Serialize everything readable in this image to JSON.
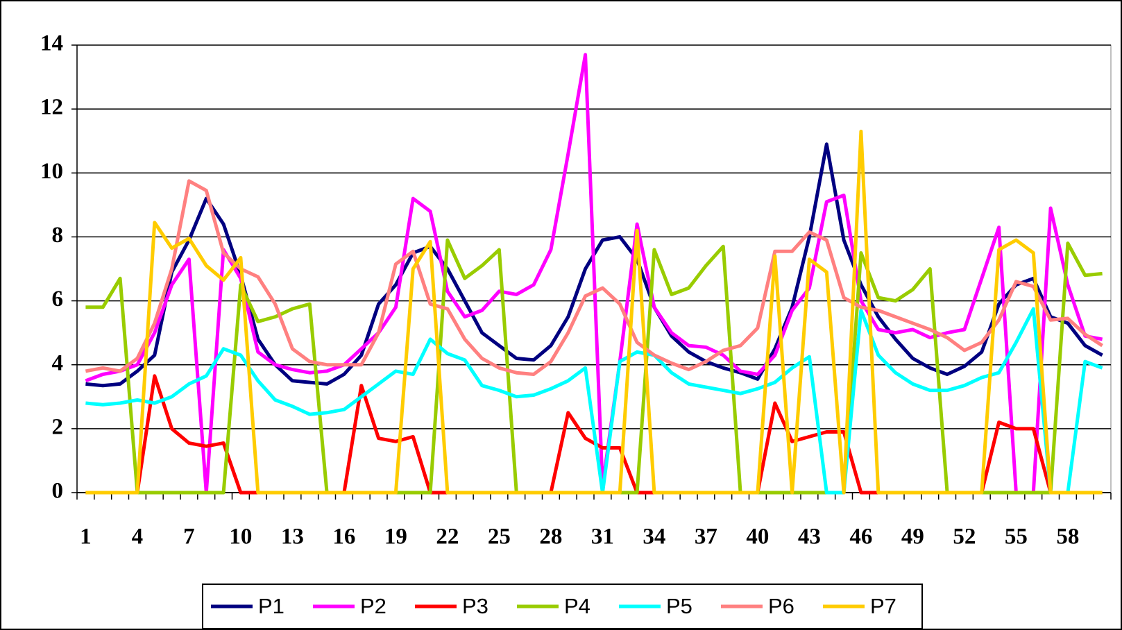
{
  "chart_data": {
    "type": "line",
    "categories": [
      "1",
      null,
      null,
      "4",
      null,
      null,
      "7",
      null,
      null,
      "10",
      null,
      null,
      "13",
      null,
      null,
      "16",
      null,
      null,
      "19",
      null,
      null,
      "22",
      null,
      null,
      "25",
      null,
      null,
      "28",
      null,
      null,
      "31",
      null,
      null,
      "34",
      null,
      null,
      "37",
      null,
      null,
      "40",
      null,
      null,
      "43",
      null,
      null,
      "46",
      null,
      null,
      "49",
      null,
      null,
      "52",
      null,
      null,
      "55",
      null,
      null,
      "58",
      null,
      null
    ],
    "ylim": [
      0,
      14
    ],
    "yticks": [
      0,
      2,
      4,
      6,
      8,
      10,
      12,
      14
    ],
    "grid": true,
    "legend": "bottom",
    "series": [
      {
        "name": "P1",
        "color": "#000080",
        "values": [
          3.4,
          3.35,
          3.4,
          3.8,
          4.3,
          6.9,
          7.9,
          9.2,
          8.4,
          6.8,
          4.8,
          4.0,
          3.5,
          3.45,
          3.4,
          3.7,
          4.3,
          5.9,
          6.5,
          7.5,
          7.7,
          7.0,
          6.0,
          5.0,
          4.6,
          4.2,
          4.15,
          4.6,
          5.5,
          7.0,
          7.9,
          8.0,
          7.3,
          5.8,
          4.9,
          4.4,
          4.1,
          3.9,
          3.75,
          3.55,
          4.5,
          5.8,
          8.0,
          10.9,
          7.9,
          6.5,
          5.5,
          4.8,
          4.2,
          3.9,
          3.7,
          3.95,
          4.4,
          5.9,
          6.5,
          6.7,
          5.5,
          5.3,
          4.6,
          4.3
        ]
      },
      {
        "name": "P2",
        "color": "#ff00ff",
        "values": [
          3.5,
          3.7,
          3.8,
          4.0,
          5.0,
          6.5,
          7.3,
          0,
          7.6,
          6.7,
          4.4,
          4.0,
          3.85,
          3.75,
          3.8,
          4.0,
          4.5,
          5.0,
          5.8,
          9.2,
          8.8,
          6.3,
          5.5,
          5.7,
          6.3,
          6.2,
          6.5,
          7.6,
          10.6,
          13.7,
          0.2,
          4.1,
          8.4,
          5.8,
          5.0,
          4.6,
          4.55,
          4.3,
          3.8,
          3.7,
          4.3,
          5.7,
          6.4,
          9.1,
          9.3,
          6.0,
          5.1,
          5.0,
          5.1,
          4.85,
          5.0,
          5.1,
          6.7,
          8.3,
          0,
          0,
          8.9,
          6.5,
          4.9,
          4.8
        ]
      },
      {
        "name": "P3",
        "color": "#ff0000",
        "values": [
          0,
          0,
          0,
          0,
          3.65,
          2.0,
          1.55,
          1.45,
          1.55,
          0,
          0,
          0,
          0,
          0,
          0,
          0,
          3.35,
          1.7,
          1.6,
          1.75,
          0,
          0,
          0,
          0,
          0,
          0,
          0,
          0,
          2.5,
          1.7,
          1.4,
          1.4,
          0,
          0,
          0,
          0,
          0,
          0,
          0,
          0,
          2.8,
          1.6,
          1.75,
          1.9,
          1.9,
          0,
          0,
          0,
          0,
          0,
          0,
          0,
          0,
          2.2,
          2.0,
          2.0,
          0,
          0,
          0,
          0
        ]
      },
      {
        "name": "P4",
        "color": "#99cc00",
        "values": [
          5.8,
          5.8,
          6.7,
          0,
          0,
          0,
          0,
          0,
          0,
          6.5,
          5.35,
          5.5,
          5.75,
          5.9,
          0,
          0,
          0,
          0,
          0,
          0,
          0,
          7.9,
          6.7,
          7.1,
          7.6,
          0,
          0,
          0,
          0,
          0,
          0,
          0,
          0,
          7.6,
          6.2,
          6.4,
          7.1,
          7.7,
          0,
          0,
          0,
          0,
          0,
          0,
          0,
          7.5,
          6.1,
          6.0,
          6.35,
          7.0,
          0,
          0,
          0,
          0,
          0,
          0,
          0,
          7.8,
          6.8,
          6.85
        ]
      },
      {
        "name": "P5",
        "color": "#00ffff",
        "values": [
          2.8,
          2.75,
          2.8,
          2.9,
          2.8,
          3.0,
          3.4,
          3.65,
          4.5,
          4.3,
          3.5,
          2.9,
          2.7,
          2.45,
          2.5,
          2.6,
          3.0,
          3.4,
          3.8,
          3.7,
          4.8,
          4.35,
          4.15,
          3.35,
          3.2,
          3.0,
          3.05,
          3.25,
          3.5,
          3.9,
          0,
          4.1,
          4.4,
          4.3,
          3.75,
          3.4,
          3.3,
          3.2,
          3.1,
          3.25,
          3.45,
          3.9,
          4.25,
          0,
          0,
          5.7,
          4.3,
          3.75,
          3.4,
          3.2,
          3.2,
          3.35,
          3.6,
          3.75,
          4.7,
          5.75,
          0,
          0,
          4.1,
          3.9
        ]
      },
      {
        "name": "P6",
        "color": "#ff8080",
        "values": [
          3.8,
          3.9,
          3.8,
          4.2,
          5.3,
          7.0,
          9.75,
          9.45,
          7.5,
          7.0,
          6.75,
          5.9,
          4.5,
          4.1,
          4.0,
          4.0,
          4.0,
          5.0,
          7.15,
          7.55,
          5.9,
          5.75,
          4.8,
          4.2,
          3.9,
          3.75,
          3.7,
          4.1,
          5.0,
          6.15,
          6.4,
          5.9,
          4.7,
          4.3,
          4.05,
          3.85,
          4.1,
          4.45,
          4.6,
          5.15,
          7.55,
          7.55,
          8.15,
          7.9,
          6.1,
          5.8,
          5.7,
          5.5,
          5.3,
          5.1,
          4.85,
          4.45,
          4.7,
          5.4,
          6.6,
          6.45,
          5.4,
          5.45,
          4.95,
          4.6
        ]
      },
      {
        "name": "P7",
        "color": "#ffcc00",
        "values": [
          0,
          0,
          0,
          0,
          8.45,
          7.65,
          7.95,
          7.1,
          6.65,
          7.35,
          0,
          0,
          0,
          0,
          0,
          0,
          0,
          0,
          0,
          7.0,
          7.85,
          0,
          0,
          0,
          0,
          0,
          0,
          0,
          0,
          0,
          0,
          0,
          8.2,
          0,
          0,
          0,
          0,
          0,
          0,
          0,
          7.4,
          0,
          7.3,
          6.9,
          0,
          11.3,
          0,
          0,
          0,
          0,
          0,
          0,
          0,
          7.6,
          7.9,
          7.5,
          0,
          0,
          0,
          0
        ]
      }
    ]
  }
}
